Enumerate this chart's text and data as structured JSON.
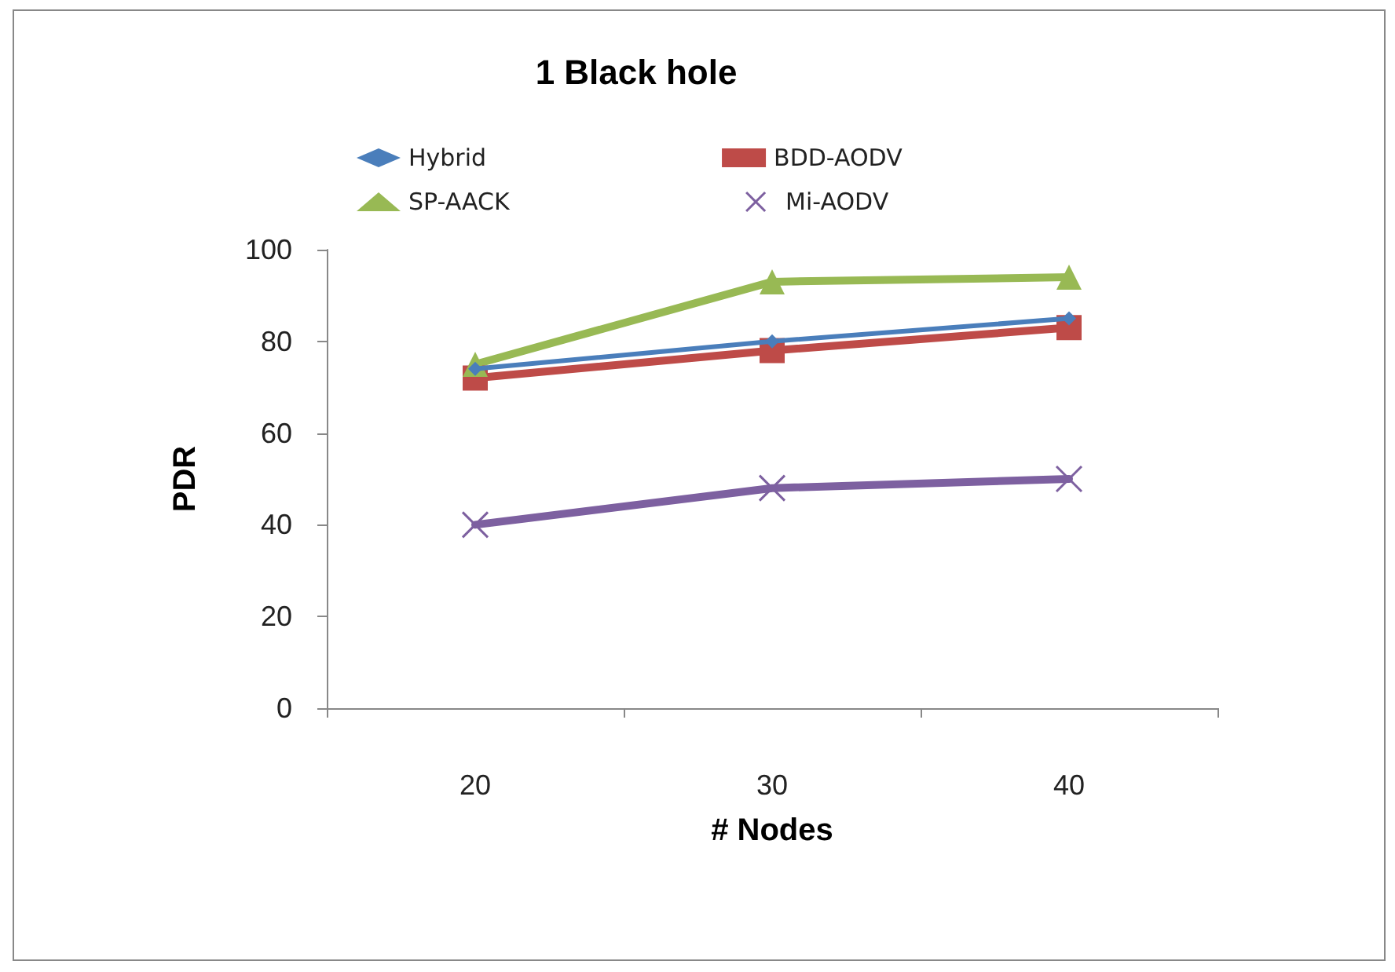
{
  "chart_data": {
    "type": "line",
    "title": "1 Black hole",
    "xlabel": "# Nodes",
    "ylabel": "PDR",
    "categories": [
      "20",
      "30",
      "40"
    ],
    "series": [
      {
        "name": "Hybrid",
        "color": "#4a7ebb",
        "marker": "diamond",
        "values": [
          74,
          80,
          85
        ]
      },
      {
        "name": "BDD-AODV",
        "color": "#be4b48",
        "marker": "square",
        "values": [
          72,
          78,
          83
        ]
      },
      {
        "name": "SP-AACK",
        "color": "#98b954",
        "marker": "triangle",
        "values": [
          75,
          93,
          94
        ]
      },
      {
        "name": "Mi-AODV",
        "color": "#7d60a0",
        "marker": "cross",
        "values": [
          40,
          48,
          50
        ]
      }
    ],
    "ylim": [
      0,
      100
    ],
    "yticks": [
      0,
      20,
      40,
      60,
      80,
      100
    ],
    "grid": false,
    "legend": "top"
  }
}
